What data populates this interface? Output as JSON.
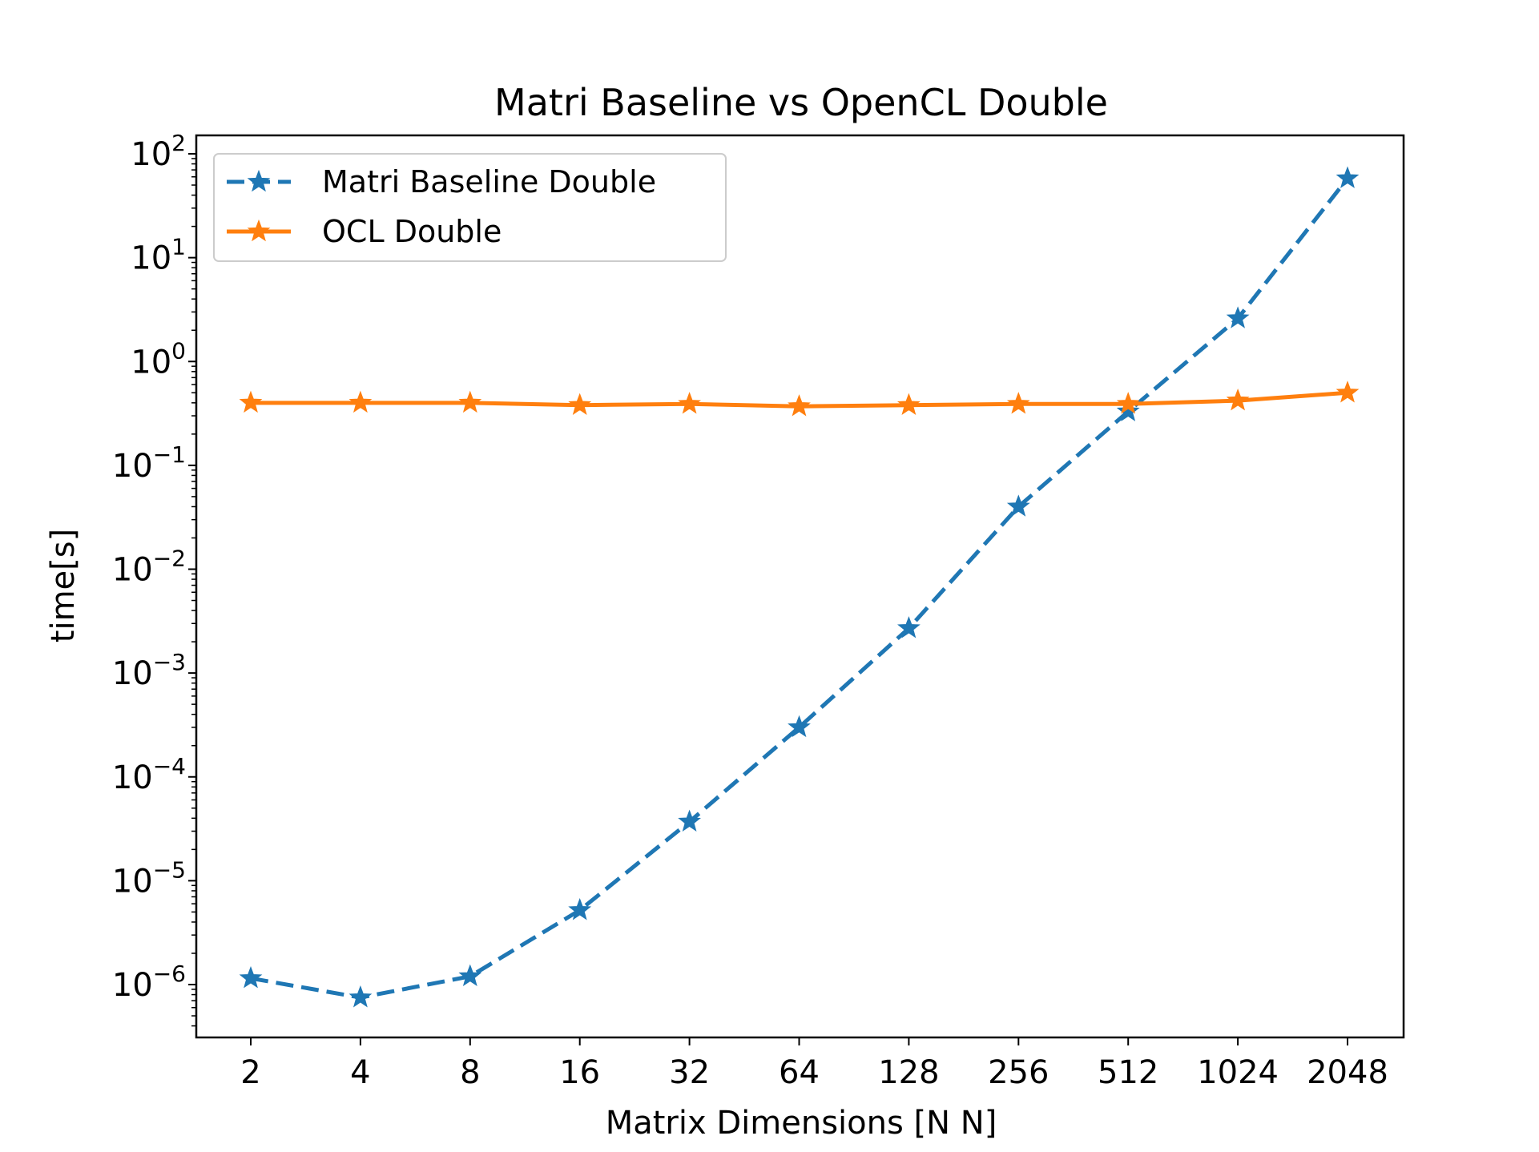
{
  "chart_data": {
    "type": "line",
    "title": "Matri   Baseline vs OpenCL Double",
    "xlabel": "Matrix Dimensions [N    N]",
    "ylabel": "time[s]",
    "xscale": "category",
    "yscale": "log",
    "ylim": [
      3e-07,
      150
    ],
    "categories": [
      "2",
      "4",
      "8",
      "16",
      "32",
      "64",
      "128",
      "256",
      "512",
      "1024",
      "2048"
    ],
    "y_ticks": [
      {
        "base": "10",
        "exp": "2"
      },
      {
        "base": "10",
        "exp": "1"
      },
      {
        "base": "10",
        "exp": "0"
      },
      {
        "base": "10",
        "exp": "−1"
      },
      {
        "base": "10",
        "exp": "−2"
      },
      {
        "base": "10",
        "exp": "−3"
      },
      {
        "base": "10",
        "exp": "−4"
      },
      {
        "base": "10",
        "exp": "−5"
      },
      {
        "base": "10",
        "exp": "−6"
      }
    ],
    "grid": false,
    "legend_position": "upper-left",
    "series": [
      {
        "name": "Matri   Baseline Double",
        "color": "#1f77b4",
        "line_style": "dashed",
        "marker": "star",
        "values": [
          1.15e-06,
          7.5e-07,
          1.2e-06,
          5.2e-06,
          3.7e-05,
          0.0003,
          0.0027,
          0.04,
          0.33,
          2.6,
          58
        ]
      },
      {
        "name": "OCL Double",
        "color": "#ff7f0e",
        "line_style": "solid",
        "marker": "star",
        "values": [
          0.4,
          0.4,
          0.4,
          0.38,
          0.39,
          0.37,
          0.38,
          0.39,
          0.39,
          0.42,
          0.5
        ]
      }
    ]
  }
}
